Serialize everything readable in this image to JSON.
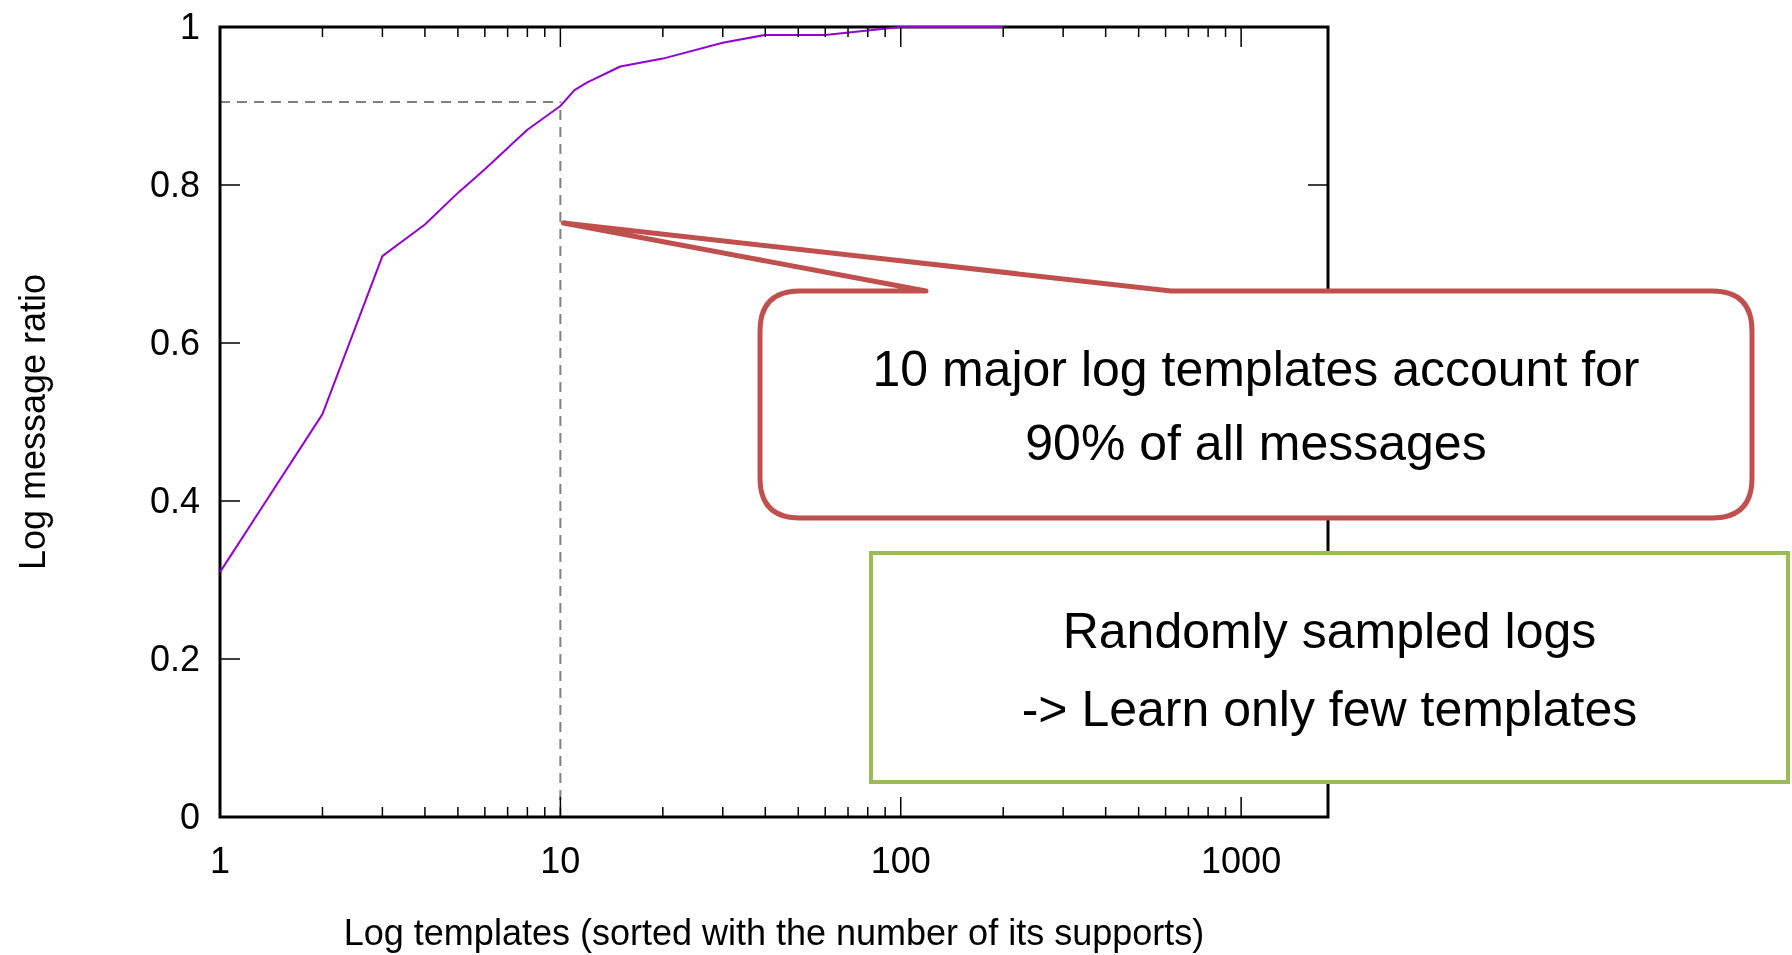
{
  "chart_data": {
    "type": "line",
    "xlabel": "Log templates (sorted with the number of its supports)",
    "ylabel": "Log message ratio",
    "log": "x",
    "xlim": [
      1,
      1800
    ],
    "xticks": [
      1,
      10,
      100,
      1000
    ],
    "ylim": [
      0,
      1
    ],
    "yticks": [
      0,
      {
        "value": 0.2,
        "label": "0.2"
      },
      {
        "value": 0.4,
        "label": "0.4"
      },
      {
        "value": 0.6,
        "label": "0.6"
      },
      {
        "value": 0.8,
        "label": "0.8"
      },
      1
    ],
    "x": [
      1,
      2,
      3,
      4,
      5,
      6,
      8,
      10,
      11,
      12,
      15,
      20,
      30,
      40,
      60,
      100,
      200
    ],
    "series": [
      {
        "color": "#9400d3",
        "values": [
          0.31,
          0.51,
          0.71,
          0.75,
          0.79,
          0.82,
          0.87,
          0.9,
          0.92,
          0.93,
          0.95,
          0.96,
          0.98,
          0.99,
          0.99,
          1.0,
          1.0
        ]
      }
    ],
    "ref_lines": [
      {
        "axis": "y",
        "value": 0.905,
        "color": "#808080",
        "line_style": "dashed"
      },
      {
        "axis": "x",
        "value": 10,
        "color": "#808080",
        "line_style": "dashed"
      }
    ],
    "annotations": [
      "10 major log templates account for\n90% of all messages",
      "Randomly sampled logs\n-> Learn only few templates"
    ]
  }
}
